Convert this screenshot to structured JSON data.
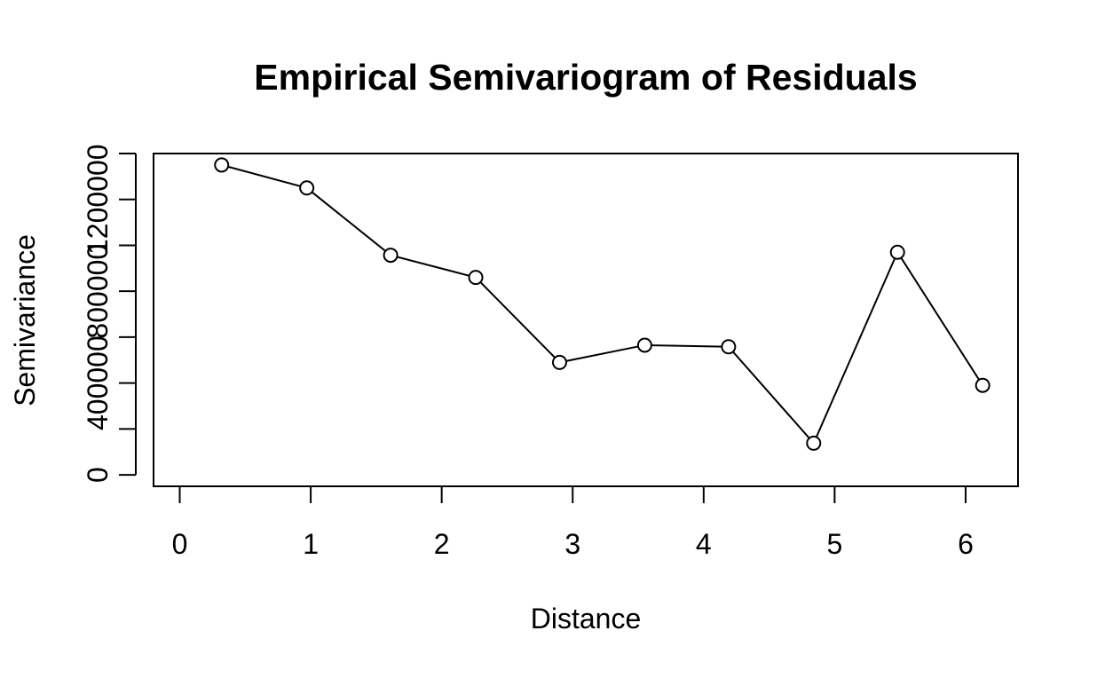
{
  "chart_data": {
    "type": "line",
    "title": "Empirical Semivariogram of Residuals",
    "xlabel": "Distance",
    "ylabel": "Semivariance",
    "xlim": [
      -0.2,
      6.4
    ],
    "ylim": [
      -50000,
      1400000
    ],
    "xticks": [
      0,
      1,
      2,
      3,
      4,
      5,
      6
    ],
    "xtick_labels": [
      "0",
      "1",
      "2",
      "3",
      "4",
      "5",
      "6"
    ],
    "yticks": [
      0,
      200000,
      400000,
      600000,
      800000,
      1000000,
      1200000,
      1400000
    ],
    "ytick_labels": [
      "0",
      "",
      "400000",
      "",
      "800000",
      "",
      "1200000",
      ""
    ],
    "grid": false,
    "marker": "open-circle",
    "line_color": "#000000",
    "series": [
      {
        "x": [
          0.32,
          0.97,
          1.61,
          2.26,
          2.9,
          3.55,
          4.19,
          4.84,
          5.48,
          6.13
        ],
        "y": [
          1350000,
          1250000,
          957000,
          860000,
          490000,
          565000,
          558000,
          138000,
          970000,
          390000
        ]
      }
    ]
  }
}
